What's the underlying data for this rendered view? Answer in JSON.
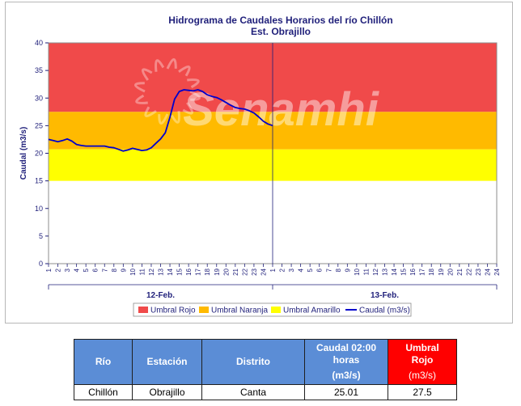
{
  "chart_data": {
    "type": "line",
    "title": "Hidrograma de Caudales Horarios del río Chillón",
    "subtitle": "Est. Obrajillo",
    "ylabel": "Caudal  (m3/s)",
    "ylim": [
      0,
      40
    ],
    "yticks": [
      0,
      5,
      10,
      15,
      20,
      25,
      30,
      35,
      40
    ],
    "x_hour_labels": [
      "1",
      "2",
      "3",
      "4",
      "5",
      "6",
      "7",
      "8",
      "9",
      "10",
      "11",
      "12",
      "13",
      "14",
      "15",
      "16",
      "17",
      "18",
      "19",
      "20",
      "21",
      "22",
      "23",
      "24",
      "1",
      "2",
      "3",
      "4",
      "5",
      "6",
      "7",
      "8",
      "9",
      "10",
      "11",
      "12",
      "13",
      "14",
      "15",
      "16",
      "17",
      "18",
      "19",
      "20",
      "21",
      "22",
      "23",
      "24"
    ],
    "day_labels": [
      "12-Feb.",
      "13-Feb."
    ],
    "thresholds": {
      "yellow": [
        15,
        20.7
      ],
      "orange": [
        20.7,
        27.5
      ],
      "red": [
        27.5,
        40
      ]
    },
    "series": [
      {
        "name": "Caudal (m3/s)",
        "x": [
          0,
          0.5,
          1,
          1.5,
          2,
          2.5,
          3,
          3.5,
          4,
          4.5,
          5,
          5.5,
          6,
          6.5,
          7,
          7.5,
          8,
          8.5,
          9,
          9.5,
          10,
          10.5,
          11,
          11.5,
          12,
          12.5,
          13,
          13.5,
          14,
          14.5,
          15,
          15.5,
          16,
          16.5,
          17,
          17.5,
          18,
          18.5,
          19,
          19.5,
          20,
          20.5,
          21,
          21.5,
          22,
          22.5,
          23,
          23.5,
          24,
          24.5,
          25
        ],
        "values": [
          22.5,
          22.3,
          22.1,
          22.3,
          22.6,
          22.2,
          21.6,
          21.4,
          21.3,
          21.3,
          21.3,
          21.3,
          21.3,
          21.1,
          21.0,
          20.7,
          20.4,
          20.6,
          20.9,
          20.7,
          20.5,
          20.6,
          21.0,
          21.8,
          22.6,
          23.7,
          26.5,
          29.8,
          31.2,
          31.5,
          31.4,
          31.3,
          31.5,
          31.2,
          30.6,
          30.3,
          30.1,
          29.7,
          29.2,
          28.7,
          28.3,
          28.1,
          28.0,
          27.7,
          27.3,
          26.6,
          25.8,
          25.3,
          25.01,
          null,
          null
        ],
        "color": "#0000cc"
      }
    ],
    "legend": [
      "Umbral Rojo",
      "Umbral Naranja",
      "Umbral Amarillo",
      "Caudal (m3/s)"
    ],
    "legend_placement": "bottom",
    "colors": {
      "red": "#f04a4a",
      "orange": "#ffba00",
      "yellow": "#ffff00",
      "line": "#0000cc"
    },
    "watermark": "Senamhi",
    "grid": false
  },
  "table": {
    "headers": [
      {
        "line1": "Río",
        "line2": "",
        "unit": ""
      },
      {
        "line1": "Estación",
        "line2": "",
        "unit": ""
      },
      {
        "line1": "Distrito",
        "line2": "",
        "unit": ""
      },
      {
        "line1": "Caudal 02:00",
        "line2": "horas",
        "unit": "(m3/s)"
      },
      {
        "line1": "Umbral",
        "line2": "Rojo",
        "unit": "(m3/s)"
      }
    ],
    "row": [
      "Chillón",
      "Obrajillo",
      "Canta",
      "25.01",
      "27.5"
    ]
  }
}
